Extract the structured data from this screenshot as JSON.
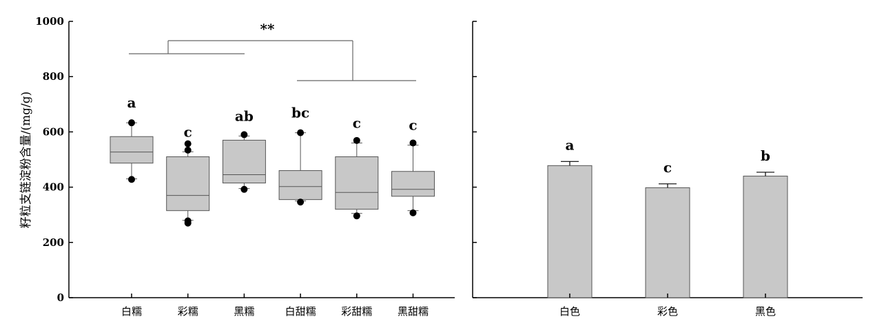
{
  "chart_data": [
    {
      "type": "box",
      "ylabel": "籽粒支链淀粉含量/(mg/g)",
      "ylim": [
        0,
        1000
      ],
      "yticks": [
        0,
        200,
        400,
        600,
        800,
        1000
      ],
      "categories": [
        "白糯",
        "彩糯",
        "黑糯",
        "白甜糯",
        "彩甜糯",
        "黑甜糯"
      ],
      "boxes": [
        {
          "whisker_low": 430,
          "q1": 487,
          "median": 527,
          "q3": 583,
          "whisker_high": 633,
          "outliers": [
            633,
            428
          ]
        },
        {
          "whisker_low": 280,
          "q1": 315,
          "median": 370,
          "q3": 510,
          "whisker_high": 528,
          "outliers": [
            557,
            534,
            278,
            270
          ]
        },
        {
          "whisker_low": 395,
          "q1": 415,
          "median": 445,
          "q3": 570,
          "whisker_high": 585,
          "outliers": [
            590,
            392
          ]
        },
        {
          "whisker_low": 350,
          "q1": 355,
          "median": 402,
          "q3": 460,
          "whisker_high": 597,
          "outliers": [
            597,
            346
          ]
        },
        {
          "whisker_low": 305,
          "q1": 320,
          "median": 381,
          "q3": 510,
          "whisker_high": 560,
          "outliers": [
            569,
            296
          ]
        },
        {
          "whisker_low": 315,
          "q1": 367,
          "median": 392,
          "q3": 457,
          "whisker_high": 552,
          "outliers": [
            560,
            307
          ]
        }
      ],
      "letters": [
        "a",
        "c",
        "ab",
        "bc",
        "c",
        "c"
      ],
      "significance": "**"
    },
    {
      "type": "bar",
      "ylim": [
        0,
        1000
      ],
      "categories": [
        "白色",
        "彩色",
        "黑色"
      ],
      "values": [
        478,
        398,
        440
      ],
      "errors": [
        15,
        14,
        14
      ],
      "letters": [
        "a",
        "c",
        "b"
      ]
    }
  ],
  "colors": {
    "box_fill": "#c8c8c8",
    "bar_fill": "#c8c8c8",
    "line": "#000000",
    "bracket": "#666666"
  }
}
